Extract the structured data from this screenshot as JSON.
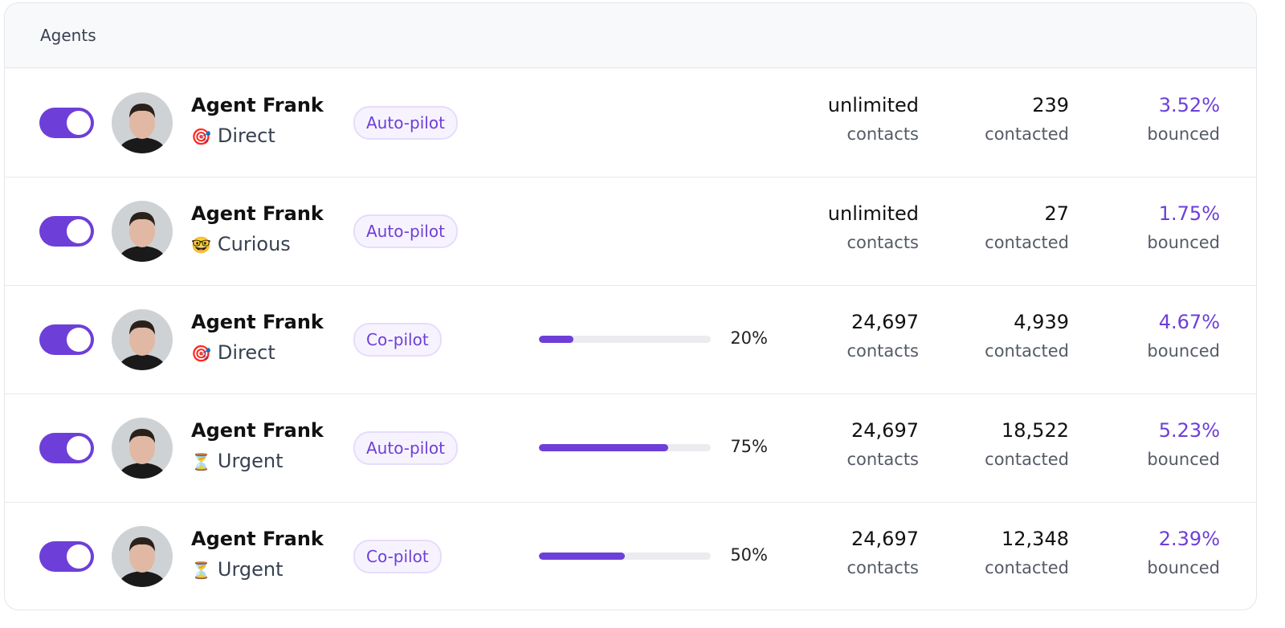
{
  "header": {
    "title": "Agents"
  },
  "rows": [
    {
      "name": "Agent Frank",
      "icon": "🎯",
      "style": "Direct",
      "mode": "Auto-pilot",
      "contacts": "unlimited",
      "contacts_label": "contacts",
      "contacted": "239",
      "contacted_label": "contacted",
      "bounced": "3.52%",
      "bounced_label": "bounced"
    },
    {
      "name": "Agent Frank",
      "icon": "🤓",
      "style": "Curious",
      "mode": "Auto-pilot",
      "contacts": "unlimited",
      "contacts_label": "contacts",
      "contacted": "27",
      "contacted_label": "contacted",
      "bounced": "1.75%",
      "bounced_label": "bounced"
    },
    {
      "name": "Agent Frank",
      "icon": "🎯",
      "style": "Direct",
      "mode": "Co-pilot",
      "progress": {
        "value": 20,
        "label": "20%"
      },
      "contacts": "24,697",
      "contacts_label": "contacts",
      "contacted": "4,939",
      "contacted_label": "contacted",
      "bounced": "4.67%",
      "bounced_label": "bounced"
    },
    {
      "name": "Agent Frank",
      "icon": "⏳",
      "style": "Urgent",
      "mode": "Auto-pilot",
      "progress": {
        "value": 75,
        "label": "75%"
      },
      "contacts": "24,697",
      "contacts_label": "contacts",
      "contacted": "18,522",
      "contacted_label": "contacted",
      "bounced": "5.23%",
      "bounced_label": "bounced"
    },
    {
      "name": "Agent Frank",
      "icon": "⏳",
      "style": "Urgent",
      "mode": "Co-pilot",
      "progress": {
        "value": 50,
        "label": "50%"
      },
      "contacts": "24,697",
      "contacts_label": "contacts",
      "contacted": "12,348",
      "contacted_label": "contacted",
      "bounced": "2.39%",
      "bounced_label": "bounced"
    }
  ]
}
